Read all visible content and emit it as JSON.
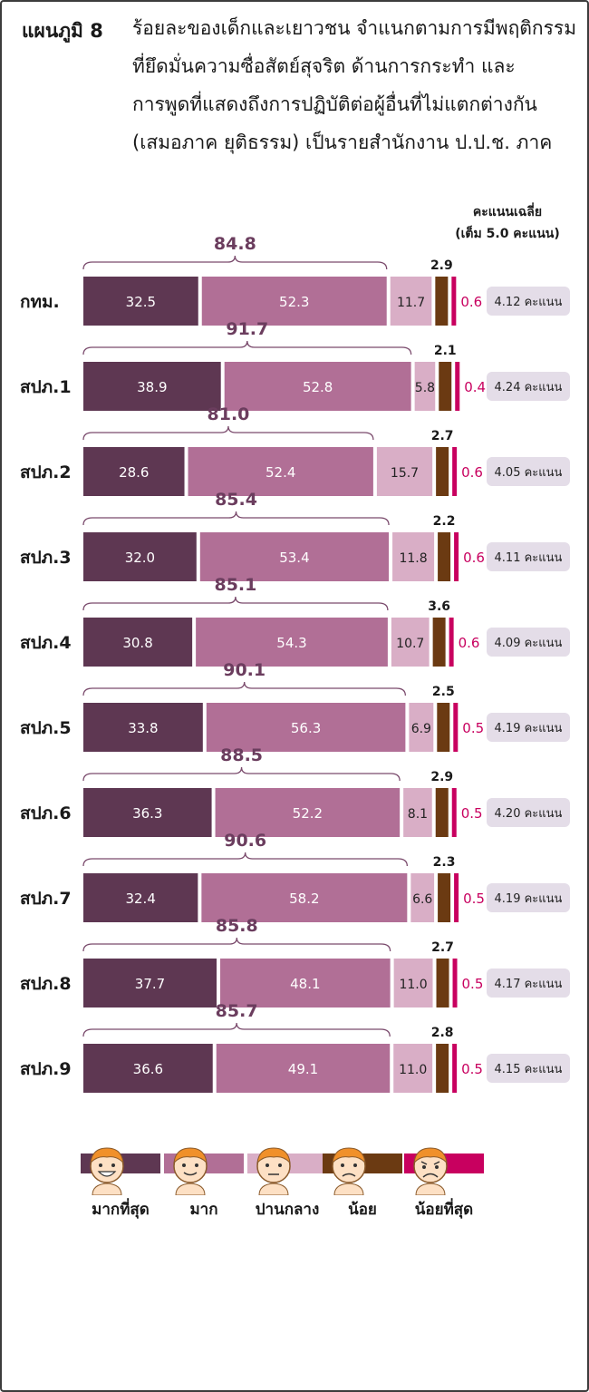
{
  "header": {
    "label": "แผนภูมิ 8",
    "lines": [
      "ร้อยละของเด็กและเยาวชน จำแนกตามการมีพฤติกรรม",
      "ที่ยึดมั่นความซื่อสัตย์สุจริต ด้านการกระทำ และ",
      "การพูดที่แสดงถึงการปฏิบัติต่อผู้อื่นที่ไม่แตกต่างกัน",
      "(เสมอภาค ยุติธรรม) เป็นรายสำนักงาน ป.ป.ช. ภาค"
    ]
  },
  "score_header": {
    "line1": "คะแนนเฉลี่ย",
    "line2": "(เต็ม 5.0 คะแนน)"
  },
  "colors": {
    "most": "#5e3752",
    "much": "#b16f96",
    "moderate": "#d9aec6",
    "little": "#6b3a12",
    "least": "#c8005f",
    "score_box": "#e4dde8"
  },
  "chart_data": {
    "type": "bar",
    "orientation": "horizontal-stacked",
    "categories": [
      "กทม.",
      "สปภ.1",
      "สปภ.2",
      "สปภ.3",
      "สปภ.4",
      "สปภ.5",
      "สปภ.6",
      "สปภ.7",
      "สปภ.8",
      "สปภ.9"
    ],
    "series": [
      {
        "name": "มากที่สุด",
        "values": [
          32.5,
          38.9,
          28.6,
          32.0,
          30.8,
          33.8,
          36.3,
          32.4,
          37.7,
          36.6
        ]
      },
      {
        "name": "มาก",
        "values": [
          52.3,
          52.8,
          52.4,
          53.4,
          54.3,
          56.3,
          52.2,
          58.2,
          48.1,
          49.1
        ]
      },
      {
        "name": "ปานกลาง",
        "values": [
          11.7,
          5.8,
          15.7,
          11.8,
          10.7,
          6.9,
          8.1,
          6.6,
          11.0,
          11.0
        ]
      },
      {
        "name": "น้อย",
        "values": [
          2.9,
          2.1,
          2.7,
          2.2,
          3.6,
          2.5,
          2.9,
          2.3,
          2.7,
          2.8
        ]
      },
      {
        "name": "น้อยที่สุด",
        "values": [
          0.6,
          0.4,
          0.6,
          0.6,
          0.6,
          0.5,
          0.5,
          0.5,
          0.5,
          0.5
        ]
      }
    ],
    "combined_top2": [
      "84.8",
      "91.7",
      "81.0",
      "85.4",
      "85.1",
      "90.1",
      "88.5",
      "90.6",
      "85.8",
      "85.7"
    ],
    "scores": [
      "4.12 คะแนน",
      "4.24 คะแนน",
      "4.05 คะแนน",
      "4.11 คะแนน",
      "4.09 คะแนน",
      "4.19 คะแนน",
      "4.20 คะแนน",
      "4.19 คะแนน",
      "4.17 คะแนน",
      "4.15 คะแนน"
    ],
    "legend": [
      "มากที่สุด",
      "มาก",
      "ปานกลาง",
      "น้อย",
      "น้อยที่สุด"
    ]
  }
}
